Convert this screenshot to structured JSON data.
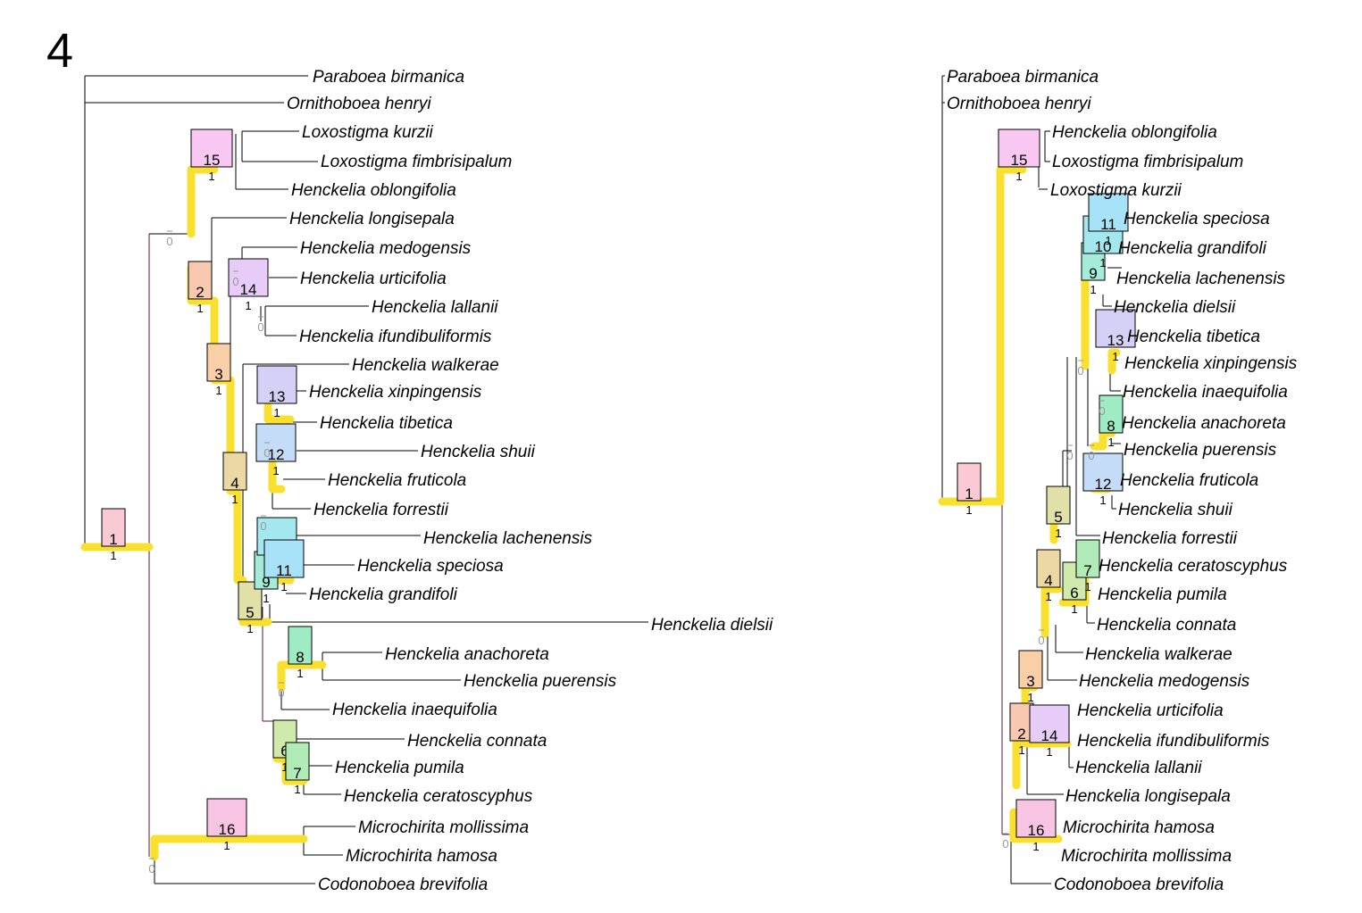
{
  "figure_label": "4",
  "colors": {
    "highlight": "#f9df2e",
    "line": "#000000",
    "dark_line": "#5a1a3a",
    "faint_text": "#999999"
  },
  "left_tree": {
    "taxa": [
      "Paraboea birmanica",
      "Ornithoboea henryi",
      "Loxostigma kurzii",
      "Loxostigma fimbrisipalum",
      "Henckelia oblongifolia",
      "Henckelia longisepala",
      "Henckelia medogensis",
      "Henckelia urticifolia",
      "Henckelia lallanii",
      "Henckelia ifundibuliformis",
      "Henckelia walkerae",
      "Henckelia xinpingensis",
      "Henckelia tibetica",
      "Henckelia shuii",
      "Henckelia fruticola",
      "Henckelia forrestii",
      "Henckelia lachenensis",
      "Henckelia speciosa",
      "Henckelia grandifoli",
      "Henckelia dielsii",
      "Henckelia anachoreta",
      "Henckelia puerensis",
      "Henckelia inaequifolia",
      "Henckelia connata",
      "Henckelia pumila",
      "Henckelia ceratoscyphus",
      "Microchirita mollissima",
      "Microchirita hamosa",
      "Codonoboea brevifolia"
    ],
    "nodes": [
      {
        "id": "1",
        "support": "1",
        "color": "#f9c9d4"
      },
      {
        "id": "2",
        "support": "1",
        "color": "#f8c8b0"
      },
      {
        "id": "3",
        "support": "1",
        "color": "#f9cfa8"
      },
      {
        "id": "4",
        "support": "1",
        "color": "#ecd8a4"
      },
      {
        "id": "5",
        "support": "1",
        "color": "#e0e0a8"
      },
      {
        "id": "6",
        "support": "1",
        "color": "#cfeaac"
      },
      {
        "id": "7",
        "support": "1",
        "color": "#b0ebb8"
      },
      {
        "id": "8",
        "support": "1",
        "color": "#9eebc4"
      },
      {
        "id": "9",
        "support": "1",
        "color": "#a4ecd8"
      },
      {
        "id": "10",
        "support": "1",
        "color": "#a2e8ee"
      },
      {
        "id": "11",
        "support": "1",
        "color": "#a8e2f8"
      },
      {
        "id": "12",
        "support": "1",
        "color": "#c4dcf8"
      },
      {
        "id": "13",
        "support": "1",
        "color": "#d4d0f6"
      },
      {
        "id": "14",
        "support": "1",
        "color": "#e8ccf8"
      },
      {
        "id": "15",
        "support": "1",
        "color": "#f8c8f2"
      },
      {
        "id": "16",
        "support": "1",
        "color": "#f8c4e4"
      }
    ],
    "zero_labels": [
      "0",
      "0",
      "0",
      "0",
      "0",
      "0",
      "0"
    ]
  },
  "right_tree": {
    "taxa": [
      "Paraboea birmanica",
      "Ornithoboea henryi",
      "Henckelia oblongifolia",
      "Loxostigma fimbrisipalum",
      "Loxostigma kurzii",
      "Henckelia speciosa",
      "Henckelia grandifoli",
      "Henckelia lachenensis",
      "Henckelia dielsii",
      "Henckelia tibetica",
      "Henckelia xinpingensis",
      "Henckelia inaequifolia",
      "Henckelia anachoreta",
      "Henckelia puerensis",
      "Henckelia fruticola",
      "Henckelia shuii",
      "Henckelia forrestii",
      "Henckelia ceratoscyphus",
      "Henckelia pumila",
      "Henckelia connata",
      "Henckelia walkerae",
      "Henckelia medogensis",
      "Henckelia urticifolia",
      "Henckelia ifundibuliformis",
      "Henckelia lallanii",
      "Henckelia longisepala",
      "Microchirita hamosa",
      "Microchirita mollissima",
      "Codonoboea brevifolia"
    ],
    "nodes": [
      {
        "id": "1",
        "support": "1"
      },
      {
        "id": "2",
        "support": "1"
      },
      {
        "id": "3",
        "support": "1"
      },
      {
        "id": "4",
        "support": "1"
      },
      {
        "id": "5",
        "support": "1"
      },
      {
        "id": "6",
        "support": "1"
      },
      {
        "id": "7",
        "support": "1"
      },
      {
        "id": "8",
        "support": "1"
      },
      {
        "id": "9",
        "support": "1"
      },
      {
        "id": "10",
        "support": "1"
      },
      {
        "id": "11",
        "support": "1"
      },
      {
        "id": "12",
        "support": "1"
      },
      {
        "id": "13",
        "support": "1"
      },
      {
        "id": "14",
        "support": "1"
      },
      {
        "id": "15",
        "support": "1"
      },
      {
        "id": "16",
        "support": "1"
      }
    ],
    "zero_labels": [
      "0",
      "0",
      "0",
      "0",
      "0",
      "0"
    ]
  }
}
